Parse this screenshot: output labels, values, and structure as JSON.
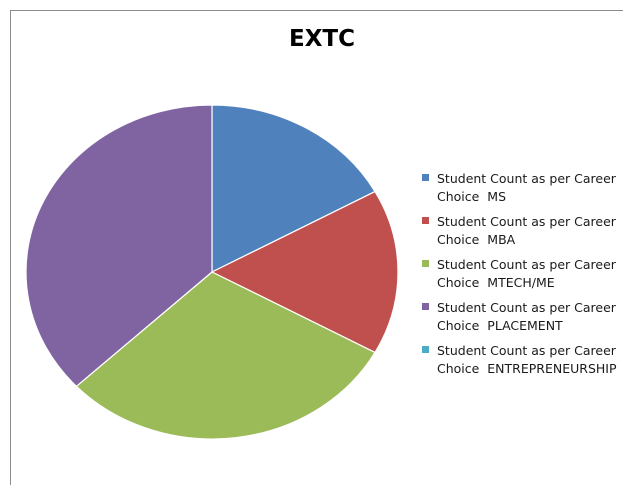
{
  "chart_data": {
    "type": "pie",
    "title": "EXTC",
    "categories": [
      "Student Count as per Career Choice  MS",
      "Student Count as per Career Choice  MBA",
      "Student Count as per Career Choice  MTECH/ME",
      "Student Count as per Career Choice  PLACEMENT",
      "Student Count as per Career Choice  ENTREPRENEURSHIP"
    ],
    "legend_lines": [
      [
        "Student Count as per Career",
        "Choice  MS"
      ],
      [
        "Student Count as per Career",
        "Choice  MBA"
      ],
      [
        "Student Count as per Career",
        "Choice  MTECH/ME"
      ],
      [
        "Student Count as per Career",
        "Choice  PLACEMENT"
      ],
      [
        "Student Count as per Career",
        "Choice  ENTREPRENEURSHIP"
      ]
    ],
    "values": [
      17,
      16,
      30,
      37,
      0
    ],
    "colors": [
      "#4f81bd",
      "#c0504d",
      "#9bbb59",
      "#8064a2",
      "#4bacc6"
    ],
    "legend_position": "right"
  }
}
